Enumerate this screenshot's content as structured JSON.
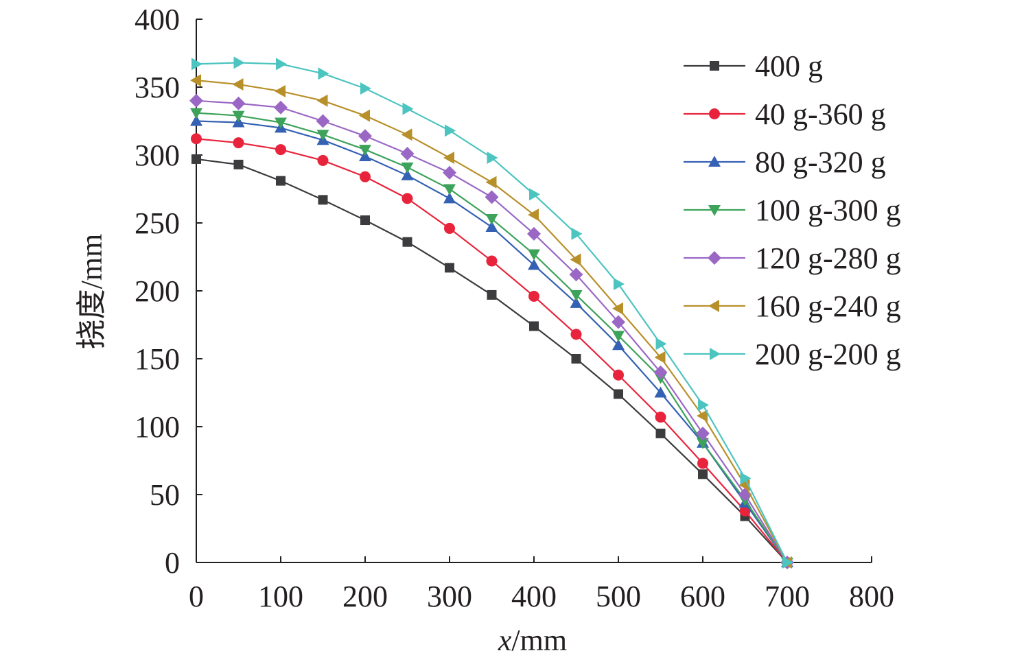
{
  "chart_data": {
    "type": "line",
    "xlabel_italic": "x",
    "xlabel_unit": "/mm",
    "ylabel": "挠度/mm",
    "xlim": [
      0,
      800
    ],
    "ylim": [
      0,
      400
    ],
    "x_ticks": [
      0,
      100,
      200,
      300,
      400,
      500,
      600,
      700,
      800
    ],
    "y_ticks": [
      0,
      50,
      100,
      150,
      200,
      250,
      300,
      350,
      400
    ],
    "grid": false,
    "legend_position": "top-right",
    "x": [
      0,
      50,
      100,
      150,
      200,
      250,
      300,
      350,
      400,
      450,
      500,
      550,
      600,
      650,
      700
    ],
    "series": [
      {
        "name": "400 g",
        "color": "#3c3c3e",
        "marker": "square",
        "values": [
          297,
          293,
          281,
          267,
          252,
          236,
          217,
          197,
          174,
          150,
          124,
          95,
          65,
          34,
          0
        ]
      },
      {
        "name": "40 g-360 g",
        "color": "#e8243c",
        "marker": "circle",
        "values": [
          312,
          309,
          304,
          296,
          284,
          268,
          246,
          222,
          196,
          168,
          138,
          107,
          73,
          38,
          0
        ]
      },
      {
        "name": "80 g-320 g",
        "color": "#3461b4",
        "marker": "triangle-up",
        "values": [
          325,
          324,
          320,
          311,
          299,
          285,
          268,
          247,
          219,
          191,
          160,
          125,
          88,
          44,
          0
        ]
      },
      {
        "name": "100 g-300 g",
        "color": "#3da25a",
        "marker": "triangle-down",
        "values": [
          331,
          329,
          324,
          315,
          304,
          291,
          275,
          253,
          227,
          197,
          167,
          136,
          88,
          46,
          0
        ]
      },
      {
        "name": "120 g-280 g",
        "color": "#9a67c5",
        "marker": "diamond",
        "values": [
          340,
          338,
          335,
          325,
          314,
          301,
          287,
          269,
          242,
          212,
          177,
          140,
          95,
          50,
          0
        ]
      },
      {
        "name": "160 g-240 g",
        "color": "#b8902a",
        "marker": "triangle-left",
        "values": [
          355,
          352,
          347,
          340,
          329,
          315,
          298,
          280,
          256,
          223,
          187,
          151,
          108,
          57,
          0
        ]
      },
      {
        "name": "200 g-200 g",
        "color": "#4cc4c0",
        "marker": "triangle-right",
        "values": [
          367,
          368,
          367,
          360,
          349,
          334,
          318,
          298,
          271,
          242,
          205,
          161,
          116,
          62,
          0
        ]
      }
    ]
  }
}
